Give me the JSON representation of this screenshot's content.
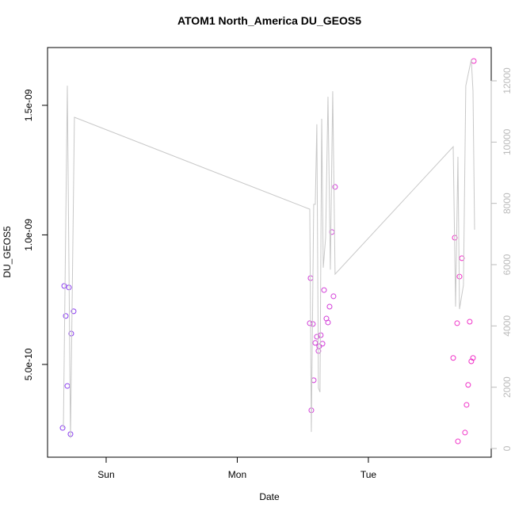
{
  "chart_data": {
    "type": "scatter",
    "title": "ATOM1 North_America DU_GEOS5",
    "x_label": "Date",
    "y_label": "DU_GEOS5",
    "xlim": [
      -0.447,
      2.937
    ],
    "xticks": [
      {
        "value": 0,
        "label": "Sun"
      },
      {
        "value": 1,
        "label": "Mon"
      },
      {
        "value": 2,
        "label": "Tue"
      }
    ],
    "ylim": [
      1.42e-10,
      1.723e-09
    ],
    "yticks": [
      {
        "value": 5e-10,
        "label": "5.0e-10"
      },
      {
        "value": 1e-09,
        "label": "1.0e-09"
      },
      {
        "value": 1.5e-09,
        "label": "1.5e-09"
      }
    ],
    "y2lim": [
      -284,
      13086
    ],
    "y2ticks": [
      0,
      2000,
      4000,
      6000,
      8000,
      10000,
      12000
    ],
    "y2color": "#bbbbbb",
    "series": [
      {
        "color": "#8a3cf0",
        "x": [
          -0.332,
          -0.32,
          -0.308,
          -0.296,
          -0.284,
          -0.272,
          -0.266,
          -0.248
        ],
        "values": [
          2.55e-10,
          8.03e-10,
          6.87e-10,
          4.17e-10,
          7.97e-10,
          2.31e-10,
          6.19e-10,
          7.05e-10
        ]
      },
      {
        "color": "#d23cd8",
        "x": [
          1.559,
          1.553,
          1.565,
          1.577,
          1.583,
          1.595,
          1.607,
          1.619,
          1.625,
          1.637,
          1.65,
          1.662,
          1.68,
          1.692,
          1.704,
          1.722,
          1.734,
          1.746
        ],
        "values": [
          8.33e-10,
          6.59e-10,
          3.23e-10,
          6.56e-10,
          4.39e-10,
          5.83e-10,
          6.07e-10,
          5.52e-10,
          5.7e-10,
          6.13e-10,
          5.8e-10,
          7.87e-10,
          6.77e-10,
          6.62e-10,
          7.23e-10,
          1.011e-09,
          7.63e-10,
          1.185e-09
        ]
      },
      {
        "color": "#f032c8",
        "x": [
          2.647,
          2.659,
          2.677,
          2.683,
          2.695,
          2.713,
          2.737,
          2.749,
          2.761,
          2.773,
          2.785,
          2.798,
          2.804
        ],
        "values": [
          5.25e-10,
          9.89e-10,
          6.59e-10,
          2.03e-10,
          8.39e-10,
          9.1e-10,
          2.37e-10,
          3.44e-10,
          4.21e-10,
          6.65e-10,
          5.12e-10,
          5.25e-10,
          1.671e-09
        ]
      },
      {
        "type": "line",
        "axis": "y2",
        "color": "#c8c8c8",
        "x": [
          -0.326,
          -0.296,
          -0.272,
          -0.242,
          1.553,
          1.565,
          1.583,
          1.595,
          1.607,
          1.619,
          1.631,
          1.644,
          1.656,
          1.674,
          1.692,
          1.71,
          1.728,
          1.746,
          2.647,
          2.665,
          2.683,
          2.695,
          2.725,
          2.743,
          2.785,
          2.798,
          2.81
        ],
        "values": [
          670,
          11840,
          340,
          10810,
          7810,
          540,
          7970,
          7970,
          10580,
          1970,
          1840,
          10760,
          5900,
          6880,
          11480,
          5840,
          11660,
          5690,
          9850,
          4630,
          9520,
          4550,
          5330,
          11840,
          12700,
          11660,
          7140
        ]
      }
    ]
  }
}
